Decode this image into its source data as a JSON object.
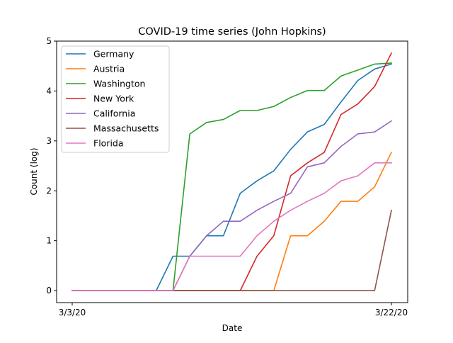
{
  "chart_data": {
    "type": "line",
    "title": "COVID-19 time series (John Hopkins)",
    "xlabel": "Date",
    "ylabel": "Count (log)",
    "x_tick_labels": [
      "3/3/20",
      "3/22/20"
    ],
    "x": [
      "3/3/20",
      "3/4/20",
      "3/5/20",
      "3/6/20",
      "3/7/20",
      "3/8/20",
      "3/9/20",
      "3/10/20",
      "3/11/20",
      "3/12/20",
      "3/13/20",
      "3/14/20",
      "3/15/20",
      "3/16/20",
      "3/17/20",
      "3/18/20",
      "3/19/20",
      "3/20/20",
      "3/21/20",
      "3/22/20"
    ],
    "ylim": [
      -0.24,
      5.0
    ],
    "y_ticks": [
      0,
      1,
      2,
      3,
      4,
      5
    ],
    "grid": false,
    "legend_position": "top-left",
    "series": [
      {
        "name": "Germany",
        "color": "#1f77b4",
        "values": [
          0,
          0,
          0,
          0,
          0,
          0,
          0.69,
          0.69,
          1.1,
          1.1,
          1.95,
          2.2,
          2.4,
          2.83,
          3.18,
          3.33,
          3.78,
          4.21,
          4.44,
          4.54
        ]
      },
      {
        "name": "Austria",
        "color": "#ff7f0e",
        "values": [
          0,
          0,
          0,
          0,
          0,
          0,
          0,
          0,
          0,
          0,
          0,
          0,
          0,
          1.1,
          1.1,
          1.39,
          1.79,
          1.79,
          2.08,
          2.77
        ]
      },
      {
        "name": "Washington",
        "color": "#2ca02c",
        "values": [
          0,
          0,
          0,
          0,
          0,
          0,
          0,
          3.14,
          3.37,
          3.43,
          3.61,
          3.61,
          3.69,
          3.87,
          4.01,
          4.01,
          4.3,
          4.42,
          4.54,
          4.56
        ]
      },
      {
        "name": "New York",
        "color": "#d62728",
        "values": [
          0,
          0,
          0,
          0,
          0,
          0,
          0,
          0,
          0,
          0,
          0,
          0.69,
          1.1,
          2.3,
          2.56,
          2.77,
          3.53,
          3.74,
          4.09,
          4.76
        ]
      },
      {
        "name": "California",
        "color": "#9467bd",
        "values": [
          0,
          0,
          0,
          0,
          0,
          0,
          0,
          0.69,
          1.1,
          1.39,
          1.39,
          1.61,
          1.79,
          1.95,
          2.48,
          2.56,
          2.89,
          3.14,
          3.18,
          3.4
        ]
      },
      {
        "name": "Massachusetts",
        "color": "#8c564b",
        "values": [
          0,
          0,
          0,
          0,
          0,
          0,
          0,
          0,
          0,
          0,
          0,
          0,
          0,
          0,
          0,
          0,
          0,
          0,
          0,
          1.61
        ]
      },
      {
        "name": "Florida",
        "color": "#e377c2",
        "values": [
          0,
          0,
          0,
          0,
          0,
          0,
          0,
          0.69,
          0.69,
          0.69,
          0.69,
          1.1,
          1.39,
          1.61,
          1.79,
          1.95,
          2.2,
          2.3,
          2.56,
          2.56
        ]
      }
    ]
  }
}
